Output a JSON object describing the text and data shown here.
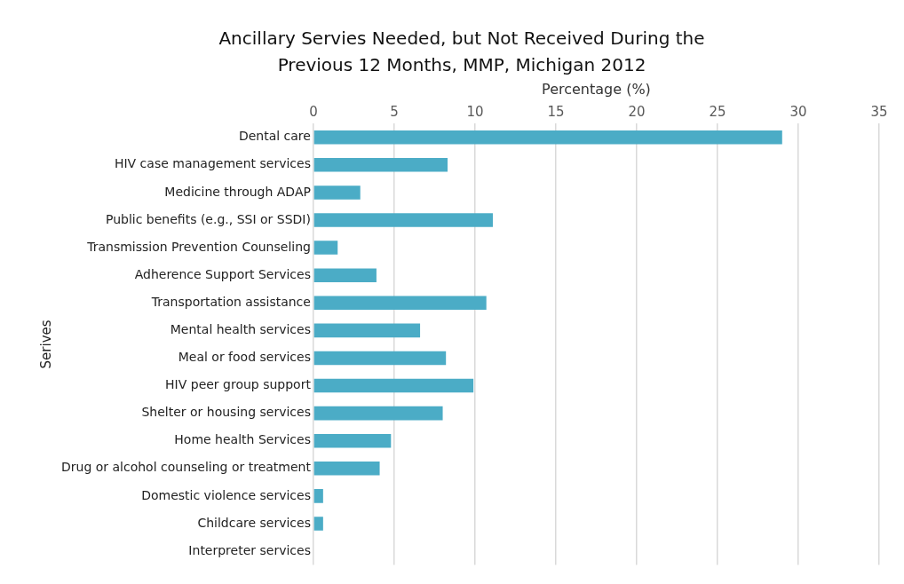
{
  "chart_data": {
    "type": "bar",
    "orientation": "horizontal",
    "title": "Ancillary Servies Needed, but Not Received During the Previous 12 Months, MMP, Michigan 2012",
    "xlabel": "Percentage (%)",
    "ylabel": "Serives",
    "categories": [
      "Dental care",
      "HIV case management services",
      "Medicine through ADAP",
      "Public benefits (e.g., SSI or SSDI)",
      "Transmission Prevention Counseling",
      "Adherence Support Services",
      "Transportation assistance",
      "Mental health services",
      "Meal or food services",
      "HIV peer group support",
      "Shelter or housing services",
      "Home health Services",
      "Drug or alcohol counseling or treatment",
      "Domestic violence services",
      "Childcare services",
      "Interpreter services"
    ],
    "values": [
      29.0,
      8.3,
      2.9,
      11.1,
      1.5,
      3.9,
      10.7,
      6.6,
      8.2,
      9.9,
      8.0,
      4.8,
      4.1,
      0.6,
      0.6,
      0
    ],
    "color": "#4bacc6",
    "xlim": [
      0,
      35
    ],
    "xticks": [
      0,
      5,
      10,
      15,
      20,
      25,
      30,
      35
    ],
    "grid": "x",
    "legend": false
  }
}
